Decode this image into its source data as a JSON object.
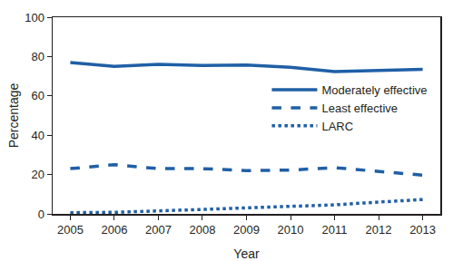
{
  "chart_data": {
    "type": "line",
    "x": [
      2005,
      2006,
      2007,
      2008,
      2009,
      2010,
      2011,
      2012,
      2013
    ],
    "xlim": [
      2004.6,
      2013.4
    ],
    "xticks": [
      2005,
      2006,
      2007,
      2008,
      2009,
      2010,
      2011,
      2012,
      2013
    ],
    "ylim": [
      0,
      100
    ],
    "yticks": [
      0,
      20,
      40,
      60,
      80,
      100
    ],
    "x_label": "Year",
    "y_label": "Percentage",
    "grid": false,
    "legend": "right",
    "series": [
      {
        "name": "Moderately effective",
        "color": "#1f5fa6",
        "line_style": "solid",
        "values": [
          77,
          75,
          76,
          75.5,
          75.7,
          74.5,
          72.3,
          73,
          73.5
        ]
      },
      {
        "name": "Least effective",
        "color": "#1f5fa6",
        "line_style": "dash",
        "values": [
          23,
          25,
          23,
          23,
          22,
          22.3,
          23.5,
          21.5,
          19.7
        ]
      },
      {
        "name": "LARC",
        "color": "#1f5fa6",
        "line_style": "dot",
        "values": [
          0.6,
          0.8,
          1.5,
          2.2,
          2.9,
          3.7,
          4.6,
          6,
          7.3
        ]
      }
    ]
  }
}
